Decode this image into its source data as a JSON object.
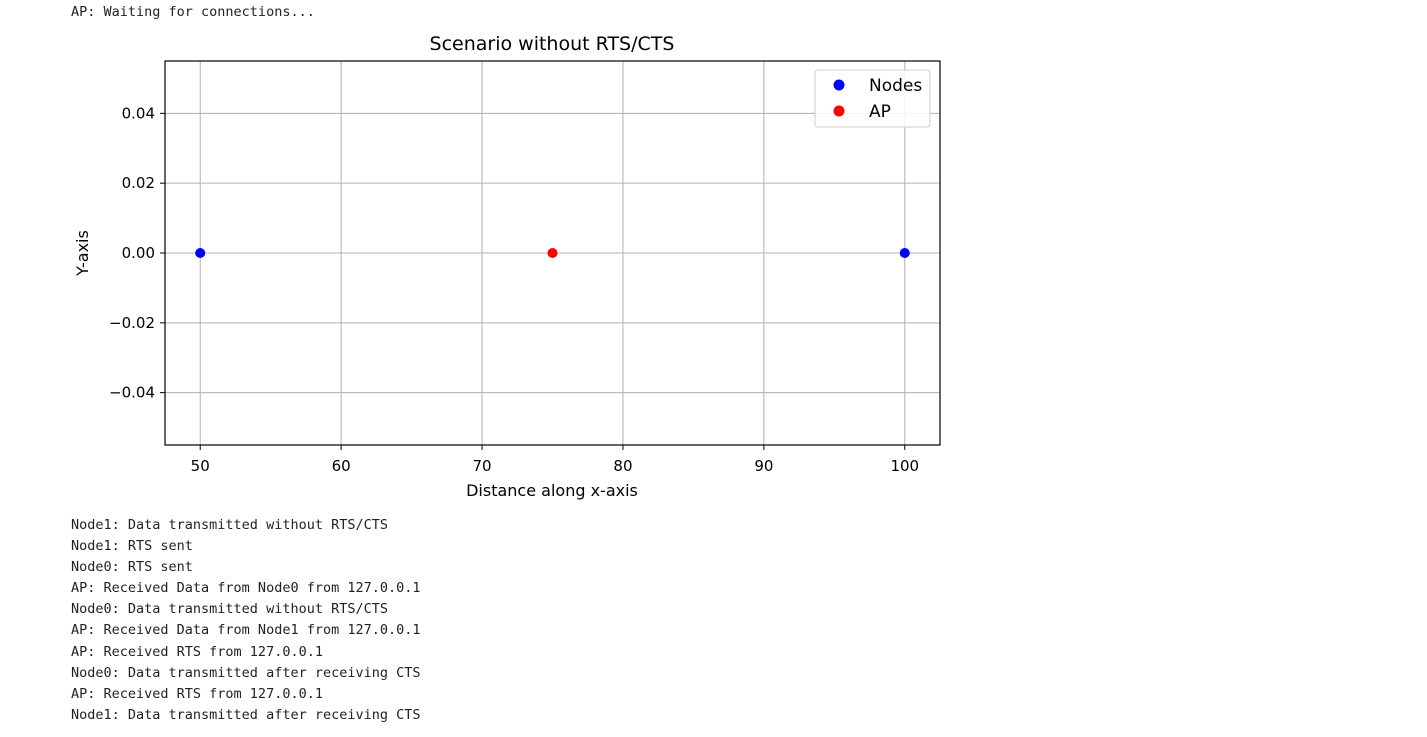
{
  "output": {
    "top_line": "AP: Waiting for connections...",
    "log_lines": [
      "Node1: Data transmitted without RTS/CTS",
      "Node1: RTS sent",
      "Node0: RTS sent",
      "AP: Received Data from Node0 from 127.0.0.1",
      "Node0: Data transmitted without RTS/CTS",
      "AP: Received Data from Node1 from 127.0.0.1",
      "AP: Received RTS from 127.0.0.1",
      "Node0: Data transmitted after receiving CTS",
      "AP: Received RTS from 127.0.0.1",
      "Node1: Data transmitted after receiving CTS"
    ]
  },
  "chart_data": {
    "type": "scatter",
    "title": "Scenario without RTS/CTS",
    "xlabel": "Distance along x-axis",
    "ylabel": "Y-axis",
    "xlim": [
      47.5,
      102.5
    ],
    "ylim": [
      -0.055,
      0.055
    ],
    "xticks": [
      50,
      60,
      70,
      80,
      90,
      100
    ],
    "xtick_labels": [
      "50",
      "60",
      "70",
      "80",
      "90",
      "100"
    ],
    "yticks": [
      0.04,
      0.02,
      0.0,
      -0.02,
      -0.04
    ],
    "ytick_labels": [
      "0.04",
      "0.02",
      "0.00",
      "−0.02",
      "−0.04"
    ],
    "grid": true,
    "legend_position": "top-right",
    "series": [
      {
        "name": "Nodes",
        "color": "#0000ff",
        "points": [
          [
            50,
            0.0
          ],
          [
            100,
            0.0
          ]
        ]
      },
      {
        "name": "AP",
        "color": "#ff0000",
        "points": [
          [
            75,
            0.0
          ]
        ]
      }
    ]
  }
}
